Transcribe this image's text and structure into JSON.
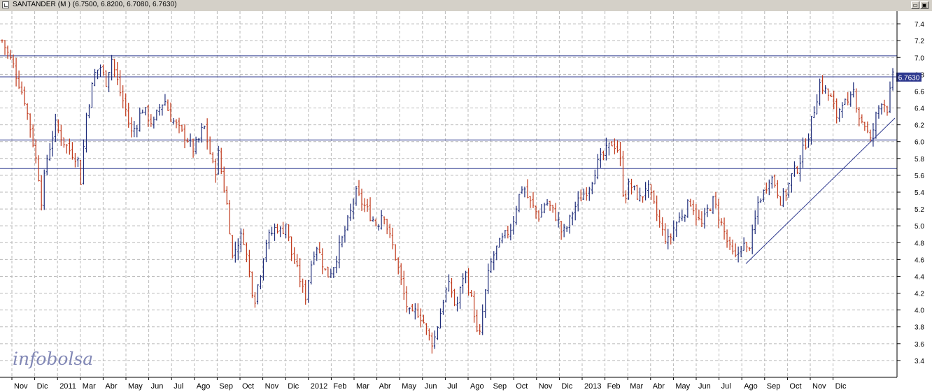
{
  "window": {
    "title": "SANTANDER (M ) (6.7500, 6.8200, 6.7080, 6.7630)",
    "minimize_glyph": "▭",
    "restore_glyph": "▣"
  },
  "watermark": {
    "part1": "info",
    "part2": "bolsa"
  },
  "colors": {
    "background": "#ffffff",
    "grid": "#b9b9b9",
    "up_bar": "#1c2a78",
    "down_bar": "#c0391b",
    "lines": "#2f3a8f",
    "price_tag": "#2f3a8f"
  },
  "chart_data": {
    "type": "ohlc",
    "instrument": "SANTANDER",
    "last": {
      "open": 6.75,
      "high": 6.82,
      "low": 6.708,
      "close": 6.763
    },
    "last_label": "6.7630",
    "ylim": [
      3.2,
      7.55
    ],
    "yticks": [
      "3.4",
      "3.6",
      "3.8",
      "4.0",
      "4.2",
      "4.4",
      "4.6",
      "4.8",
      "5.0",
      "5.2",
      "5.4",
      "5.6",
      "5.8",
      "6.0",
      "6.2",
      "6.4",
      "6.6",
      "6.8",
      "7.0",
      "7.2",
      "7.4"
    ],
    "grid": true,
    "xlabels": [
      "Nov",
      "Dic",
      "2011",
      "Mar",
      "Abr",
      "May",
      "Jun",
      "Jul",
      "Ago",
      "Sep",
      "Oct",
      "Nov",
      "Dic",
      "2012",
      "Feb",
      "Mar",
      "Abr",
      "May",
      "Jun",
      "Jul",
      "Ago",
      "Sep",
      "Oct",
      "Nov",
      "Dic",
      "2013",
      "Feb",
      "Mar",
      "Abr",
      "May",
      "Jun",
      "Jul",
      "Ago",
      "Sep",
      "Oct",
      "Nov",
      "Dic"
    ],
    "horizontal_lines": [
      7.02,
      6.77,
      6.02,
      5.68
    ],
    "trendline": {
      "from": [
        "2013-07",
        4.55
      ],
      "to": [
        "2013-12 end",
        6.28
      ]
    },
    "price_path": [
      [
        0,
        7.2
      ],
      [
        4,
        6.9
      ],
      [
        8,
        6.5
      ],
      [
        11,
        6.0
      ],
      [
        13,
        5.6
      ],
      [
        14,
        5.3
      ],
      [
        16,
        5.8
      ],
      [
        19,
        6.2
      ],
      [
        22,
        6.0
      ],
      [
        24,
        5.9
      ],
      [
        27,
        5.8
      ],
      [
        28,
        5.5
      ],
      [
        30,
        6.3
      ],
      [
        33,
        6.8
      ],
      [
        35,
        6.9
      ],
      [
        37,
        6.7
      ],
      [
        39,
        7.0
      ],
      [
        42,
        6.6
      ],
      [
        44,
        6.4
      ],
      [
        46,
        6.1
      ],
      [
        48,
        6.2
      ],
      [
        50,
        6.4
      ],
      [
        52,
        6.3
      ],
      [
        54,
        6.2
      ],
      [
        56,
        6.4
      ],
      [
        58,
        6.5
      ],
      [
        60,
        6.3
      ],
      [
        62,
        6.2
      ],
      [
        64,
        6.1
      ],
      [
        66,
        6.05
      ],
      [
        68,
        5.9
      ],
      [
        70,
        6.0
      ],
      [
        72,
        6.2
      ],
      [
        74,
        5.9
      ],
      [
        76,
        5.6
      ],
      [
        77,
        5.9
      ],
      [
        79,
        5.5
      ],
      [
        81,
        5.1
      ],
      [
        82,
        4.6
      ],
      [
        84,
        4.8
      ],
      [
        86,
        4.9
      ],
      [
        88,
        4.5
      ],
      [
        90,
        4.1
      ],
      [
        92,
        4.4
      ],
      [
        94,
        4.8
      ],
      [
        96,
        4.9
      ],
      [
        98,
        5.0
      ],
      [
        100,
        4.9
      ],
      [
        101,
        5.1
      ],
      [
        103,
        4.7
      ],
      [
        105,
        4.5
      ],
      [
        107,
        4.3
      ],
      [
        108,
        4.1
      ],
      [
        110,
        4.5
      ],
      [
        112,
        4.8
      ],
      [
        114,
        4.6
      ],
      [
        116,
        4.4
      ],
      [
        118,
        4.5
      ],
      [
        120,
        4.7
      ],
      [
        122,
        4.9
      ],
      [
        124,
        5.1
      ],
      [
        126,
        5.4
      ],
      [
        128,
        5.3
      ],
      [
        130,
        5.2
      ],
      [
        132,
        5.1
      ],
      [
        134,
        5.0
      ],
      [
        136,
        5.2
      ],
      [
        138,
        4.9
      ],
      [
        140,
        4.7
      ],
      [
        142,
        4.4
      ],
      [
        144,
        4.1
      ],
      [
        146,
        3.9
      ],
      [
        148,
        4.0
      ],
      [
        150,
        3.9
      ],
      [
        152,
        3.7
      ],
      [
        154,
        3.6
      ],
      [
        156,
        3.9
      ],
      [
        158,
        4.2
      ],
      [
        160,
        4.3
      ],
      [
        162,
        4.0
      ],
      [
        164,
        4.3
      ],
      [
        165,
        4.5
      ],
      [
        167,
        4.2
      ],
      [
        169,
        3.9
      ],
      [
        170,
        3.55
      ],
      [
        172,
        4.1
      ],
      [
        174,
        4.5
      ],
      [
        176,
        4.7
      ],
      [
        178,
        4.8
      ],
      [
        180,
        4.9
      ],
      [
        182,
        5.0
      ],
      [
        184,
        5.3
      ],
      [
        186,
        5.5
      ],
      [
        188,
        5.3
      ],
      [
        190,
        5.2
      ],
      [
        192,
        5.1
      ],
      [
        194,
        5.3
      ],
      [
        196,
        5.2
      ],
      [
        198,
        5.1
      ],
      [
        200,
        4.9
      ],
      [
        202,
        5.0
      ],
      [
        204,
        5.2
      ],
      [
        206,
        5.3
      ],
      [
        208,
        5.4
      ],
      [
        210,
        5.5
      ],
      [
        212,
        5.7
      ],
      [
        214,
        5.8
      ],
      [
        216,
        5.9
      ],
      [
        218,
        6.0
      ],
      [
        220,
        5.9
      ],
      [
        221,
        5.7
      ],
      [
        222,
        5.3
      ],
      [
        224,
        5.5
      ],
      [
        226,
        5.4
      ],
      [
        228,
        5.3
      ],
      [
        230,
        5.5
      ],
      [
        232,
        5.3
      ],
      [
        234,
        5.1
      ],
      [
        236,
        4.9
      ],
      [
        238,
        4.8
      ],
      [
        240,
        5.0
      ],
      [
        242,
        5.1
      ],
      [
        244,
        5.2
      ],
      [
        246,
        5.3
      ],
      [
        248,
        5.1
      ],
      [
        250,
        5.0
      ],
      [
        252,
        5.2
      ],
      [
        254,
        5.3
      ],
      [
        256,
        5.1
      ],
      [
        258,
        4.9
      ],
      [
        260,
        4.7
      ],
      [
        262,
        4.6
      ],
      [
        264,
        4.8
      ],
      [
        266,
        4.7
      ],
      [
        268,
        4.9
      ],
      [
        270,
        5.3
      ],
      [
        272,
        5.4
      ],
      [
        274,
        5.6
      ],
      [
        276,
        5.5
      ],
      [
        278,
        5.3
      ],
      [
        280,
        5.4
      ],
      [
        282,
        5.6
      ],
      [
        284,
        5.7
      ],
      [
        286,
        5.9
      ],
      [
        288,
        6.1
      ],
      [
        290,
        6.4
      ],
      [
        292,
        6.7
      ],
      [
        294,
        6.6
      ],
      [
        296,
        6.5
      ],
      [
        298,
        6.3
      ],
      [
        300,
        6.5
      ],
      [
        302,
        6.4
      ],
      [
        304,
        6.6
      ],
      [
        306,
        6.3
      ],
      [
        308,
        6.2
      ],
      [
        310,
        6.0
      ],
      [
        312,
        6.3
      ],
      [
        314,
        6.5
      ],
      [
        316,
        6.4
      ],
      [
        318,
        6.76
      ]
    ]
  }
}
